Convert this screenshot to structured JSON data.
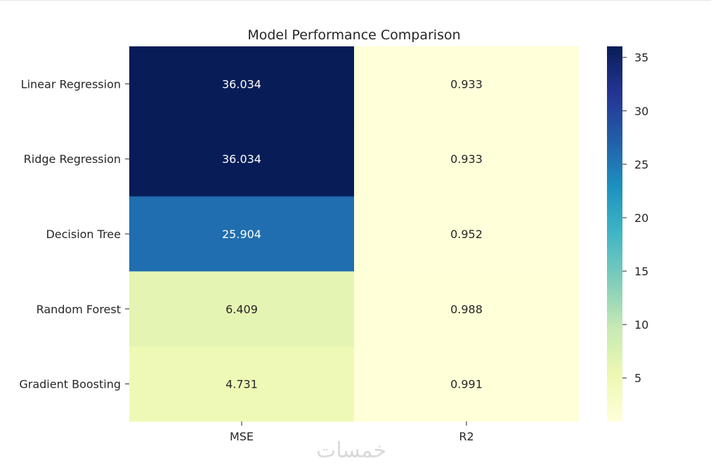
{
  "chart_data": {
    "type": "heatmap",
    "title": "Model Performance Comparison",
    "rows": [
      "Linear Regression",
      "Ridge Regression",
      "Decision Tree",
      "Random Forest",
      "Gradient Boosting"
    ],
    "columns": [
      "MSE",
      "R2"
    ],
    "values": [
      [
        36.034,
        0.933
      ],
      [
        36.034,
        0.933
      ],
      [
        25.904,
        0.952
      ],
      [
        6.409,
        0.988
      ],
      [
        4.731,
        0.991
      ]
    ],
    "value_labels": [
      [
        "36.034",
        "0.933"
      ],
      [
        "36.034",
        "0.933"
      ],
      [
        "25.904",
        "0.952"
      ],
      [
        "6.409",
        "0.988"
      ],
      [
        "4.731",
        "0.991"
      ]
    ],
    "colormap": "YlGnBu",
    "colorbar": {
      "range": [
        0.933,
        36.034
      ],
      "ticks": [
        5,
        10,
        15,
        20,
        25,
        30,
        35
      ],
      "tick_labels": [
        "5",
        "10",
        "15",
        "20",
        "25",
        "30",
        "35"
      ],
      "stops": [
        "#ffffd9",
        "#edf8b1",
        "#c7e9b4",
        "#7fcdbb",
        "#41b6c4",
        "#1d91c0",
        "#225ea8",
        "#253494",
        "#081d58"
      ]
    },
    "grid": false
  },
  "watermark": "خمسات"
}
